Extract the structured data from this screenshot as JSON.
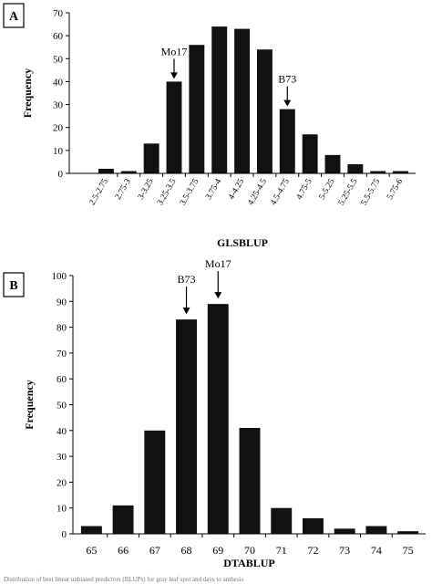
{
  "chart_data": [
    {
      "type": "bar",
      "panel_label": "A",
      "categories": [
        "2.5-2.75",
        "2.75-3",
        "3-3.25",
        "3.25-3.5",
        "3.5-3.75",
        "3.75-4",
        "4-4.25",
        "4.25-4.5",
        "4.5-4.75",
        "4.75-5",
        "5-5.25",
        "5.25-5.5",
        "5.5-5.75",
        "5.75-6"
      ],
      "values": [
        2,
        1,
        13,
        40,
        56,
        64,
        63,
        54,
        28,
        17,
        8,
        4,
        1,
        1
      ],
      "xlabel": "GLSBLUP",
      "ylabel": "Frequency",
      "ylim": [
        0,
        70
      ],
      "yticks": [
        0,
        10,
        20,
        30,
        40,
        50,
        60,
        70
      ],
      "annotations": [
        {
          "text": "Mo17",
          "category": "3.25-3.5"
        },
        {
          "text": "B73",
          "category": "4.5-4.75"
        }
      ]
    },
    {
      "type": "bar",
      "panel_label": "B",
      "categories": [
        "65",
        "66",
        "67",
        "68",
        "69",
        "70",
        "71",
        "72",
        "73",
        "74",
        "75"
      ],
      "values": [
        3,
        11,
        40,
        83,
        89,
        41,
        10,
        6,
        2,
        3,
        1
      ],
      "xlabel": "DTABLUP",
      "ylabel": "Frequency",
      "ylim": [
        0,
        100
      ],
      "yticks": [
        0,
        10,
        20,
        30,
        40,
        50,
        60,
        70,
        80,
        90,
        100
      ],
      "annotations": [
        {
          "text": "B73",
          "category": "68"
        },
        {
          "text": "Mo17",
          "category": "69"
        }
      ]
    }
  ],
  "caption_fragment": "Distribution of best linear unbiased predictors (BLUPs) for gray leaf spot and days to anthesis"
}
